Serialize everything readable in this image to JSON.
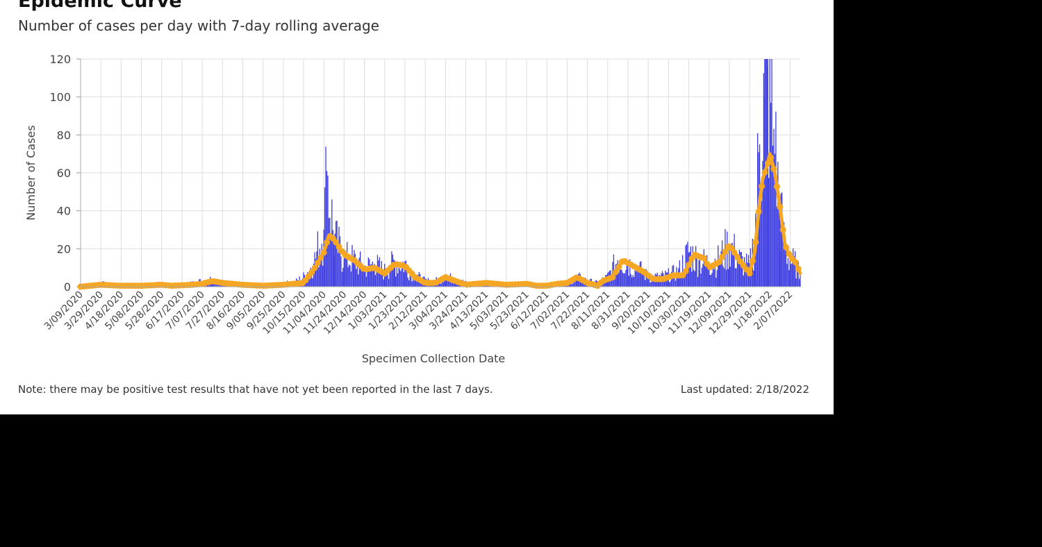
{
  "title": "Epidemic Curve",
  "subtitle": "Number of cases per day with 7-day rolling average",
  "note": "Note: there may be positive test results that have not yet been reported in the last 7 days.",
  "last_updated": "Last updated: 2/18/2022",
  "colors": {
    "bars": "#3c3ce0",
    "average": "#f5a623",
    "grid": "#dddddd",
    "axis_text": "#444444",
    "background": "#ffffff"
  },
  "chart_data": {
    "type": "bar",
    "xlabel": "Specimen Collection Date",
    "ylabel": "Number of Cases",
    "ylim": [
      0,
      120
    ],
    "yticks": [
      0,
      20,
      40,
      60,
      80,
      100,
      120
    ],
    "x_range": [
      "2020-03-09",
      "2022-02-17"
    ],
    "x_tick_labels": [
      "3/09/2020",
      "3/29/2020",
      "4/18/2020",
      "5/08/2020",
      "5/28/2020",
      "6/17/2020",
      "7/07/2020",
      "7/27/2020",
      "8/16/2020",
      "9/05/2020",
      "9/25/2020",
      "10/15/2020",
      "11/04/2020",
      "11/24/2020",
      "12/14/2020",
      "1/03/2021",
      "1/23/2021",
      "2/12/2021",
      "3/04/2021",
      "3/24/2021",
      "4/13/2021",
      "5/03/2021",
      "5/23/2021",
      "6/12/2021",
      "7/02/2021",
      "7/22/2021",
      "8/11/2021",
      "8/31/2021",
      "9/20/2021",
      "10/10/2021",
      "10/30/2021",
      "11/19/2021",
      "12/09/2021",
      "12/29/2021",
      "1/18/2022",
      "2/07/2022"
    ],
    "grid": true,
    "series": [
      {
        "kind": "bar",
        "description": "daily cases (approximate shape, sampled every 10 days)",
        "points": [
          [
            "2020-03-09",
            0
          ],
          [
            "2020-03-19",
            1
          ],
          [
            "2020-03-29",
            2
          ],
          [
            "2020-04-08",
            1
          ],
          [
            "2020-04-18",
            0
          ],
          [
            "2020-04-28",
            1
          ],
          [
            "2020-05-08",
            1
          ],
          [
            "2020-05-18",
            1
          ],
          [
            "2020-05-28",
            2
          ],
          [
            "2020-06-07",
            1
          ],
          [
            "2020-06-17",
            1
          ],
          [
            "2020-06-27",
            2
          ],
          [
            "2020-07-07",
            3
          ],
          [
            "2020-07-17",
            4
          ],
          [
            "2020-07-27",
            2
          ],
          [
            "2020-08-06",
            2
          ],
          [
            "2020-08-16",
            1
          ],
          [
            "2020-08-26",
            1
          ],
          [
            "2020-09-05",
            1
          ],
          [
            "2020-09-15",
            1
          ],
          [
            "2020-09-25",
            2
          ],
          [
            "2020-10-05",
            2
          ],
          [
            "2020-10-15",
            5
          ],
          [
            "2020-10-25",
            12
          ],
          [
            "2020-11-04",
            30
          ],
          [
            "2020-11-07",
            61
          ],
          [
            "2020-11-14",
            25
          ],
          [
            "2020-11-24",
            15
          ],
          [
            "2020-12-04",
            14
          ],
          [
            "2020-12-14",
            10
          ],
          [
            "2020-12-24",
            12
          ],
          [
            "2021-01-03",
            8
          ],
          [
            "2021-01-13",
            13
          ],
          [
            "2021-01-23",
            12
          ],
          [
            "2021-02-02",
            6
          ],
          [
            "2021-02-12",
            3
          ],
          [
            "2021-02-22",
            3
          ],
          [
            "2021-03-04",
            5
          ],
          [
            "2021-03-14",
            4
          ],
          [
            "2021-03-24",
            2
          ],
          [
            "2021-04-03",
            2
          ],
          [
            "2021-04-13",
            2
          ],
          [
            "2021-04-23",
            2
          ],
          [
            "2021-05-03",
            1
          ],
          [
            "2021-05-13",
            1
          ],
          [
            "2021-05-23",
            2
          ],
          [
            "2021-06-02",
            1
          ],
          [
            "2021-06-12",
            1
          ],
          [
            "2021-06-22",
            2
          ],
          [
            "2021-07-02",
            2
          ],
          [
            "2021-07-12",
            5
          ],
          [
            "2021-07-22",
            3
          ],
          [
            "2021-08-01",
            2
          ],
          [
            "2021-08-11",
            5
          ],
          [
            "2021-08-21",
            14
          ],
          [
            "2021-08-31",
            12
          ],
          [
            "2021-09-10",
            10
          ],
          [
            "2021-09-20",
            5
          ],
          [
            "2021-09-30",
            5
          ],
          [
            "2021-10-10",
            6
          ],
          [
            "2021-10-20",
            8
          ],
          [
            "2021-10-30",
            18
          ],
          [
            "2021-11-09",
            14
          ],
          [
            "2021-11-19",
            12
          ],
          [
            "2021-11-29",
            14
          ],
          [
            "2021-12-09",
            22
          ],
          [
            "2021-12-19",
            14
          ],
          [
            "2021-12-29",
            10
          ],
          [
            "2022-01-03",
            25
          ],
          [
            "2022-01-08",
            75
          ],
          [
            "2022-01-13",
            100
          ],
          [
            "2022-01-16",
            116
          ],
          [
            "2022-01-23",
            70
          ],
          [
            "2022-01-28",
            40
          ],
          [
            "2022-02-02",
            20
          ],
          [
            "2022-02-07",
            14
          ],
          [
            "2022-02-12",
            12
          ],
          [
            "2022-02-17",
            6
          ]
        ]
      },
      {
        "kind": "line",
        "description": "7-day rolling average (approximate)",
        "points": [
          [
            "2020-03-09",
            0
          ],
          [
            "2020-03-29",
            1
          ],
          [
            "2020-04-18",
            0.5
          ],
          [
            "2020-05-08",
            0.5
          ],
          [
            "2020-05-28",
            1
          ],
          [
            "2020-06-07",
            0.5
          ],
          [
            "2020-06-27",
            1
          ],
          [
            "2020-07-07",
            1.5
          ],
          [
            "2020-07-17",
            3
          ],
          [
            "2020-07-27",
            2
          ],
          [
            "2020-08-16",
            1
          ],
          [
            "2020-09-05",
            0.5
          ],
          [
            "2020-09-25",
            1
          ],
          [
            "2020-10-05",
            1.5
          ],
          [
            "2020-10-15",
            2
          ],
          [
            "2020-10-25",
            9
          ],
          [
            "2020-11-04",
            18
          ],
          [
            "2020-11-09",
            27
          ],
          [
            "2020-11-14",
            25
          ],
          [
            "2020-11-24",
            17
          ],
          [
            "2020-12-04",
            14
          ],
          [
            "2020-12-14",
            9
          ],
          [
            "2020-12-24",
            10
          ],
          [
            "2021-01-03",
            7
          ],
          [
            "2021-01-13",
            12
          ],
          [
            "2021-01-23",
            11
          ],
          [
            "2021-02-02",
            5
          ],
          [
            "2021-02-12",
            2
          ],
          [
            "2021-02-22",
            2
          ],
          [
            "2021-03-04",
            5
          ],
          [
            "2021-03-14",
            3
          ],
          [
            "2021-03-24",
            1
          ],
          [
            "2021-04-03",
            1.5
          ],
          [
            "2021-04-13",
            2
          ],
          [
            "2021-04-23",
            1.5
          ],
          [
            "2021-05-03",
            1
          ],
          [
            "2021-05-23",
            1.5
          ],
          [
            "2021-06-02",
            0.5
          ],
          [
            "2021-06-12",
            0.5
          ],
          [
            "2021-06-22",
            1.5
          ],
          [
            "2021-07-02",
            2
          ],
          [
            "2021-07-12",
            5
          ],
          [
            "2021-07-22",
            2
          ],
          [
            "2021-08-01",
            0.5
          ],
          [
            "2021-08-06",
            3
          ],
          [
            "2021-08-16",
            5
          ],
          [
            "2021-08-26",
            14
          ],
          [
            "2021-09-05",
            11
          ],
          [
            "2021-09-15",
            8
          ],
          [
            "2021-09-25",
            4
          ],
          [
            "2021-10-05",
            4
          ],
          [
            "2021-10-15",
            6
          ],
          [
            "2021-10-25",
            6
          ],
          [
            "2021-11-04",
            17
          ],
          [
            "2021-11-14",
            15
          ],
          [
            "2021-11-19",
            10
          ],
          [
            "2021-11-29",
            13
          ],
          [
            "2021-12-09",
            22
          ],
          [
            "2021-12-19",
            14
          ],
          [
            "2021-12-29",
            7
          ],
          [
            "2022-01-03",
            18
          ],
          [
            "2022-01-08",
            45
          ],
          [
            "2022-01-11",
            57
          ],
          [
            "2022-01-16",
            65
          ],
          [
            "2022-01-18",
            70
          ],
          [
            "2022-01-23",
            60
          ],
          [
            "2022-01-28",
            42
          ],
          [
            "2022-02-02",
            22
          ],
          [
            "2022-02-07",
            16
          ],
          [
            "2022-02-12",
            13
          ],
          [
            "2022-02-17",
            7
          ]
        ]
      }
    ]
  }
}
